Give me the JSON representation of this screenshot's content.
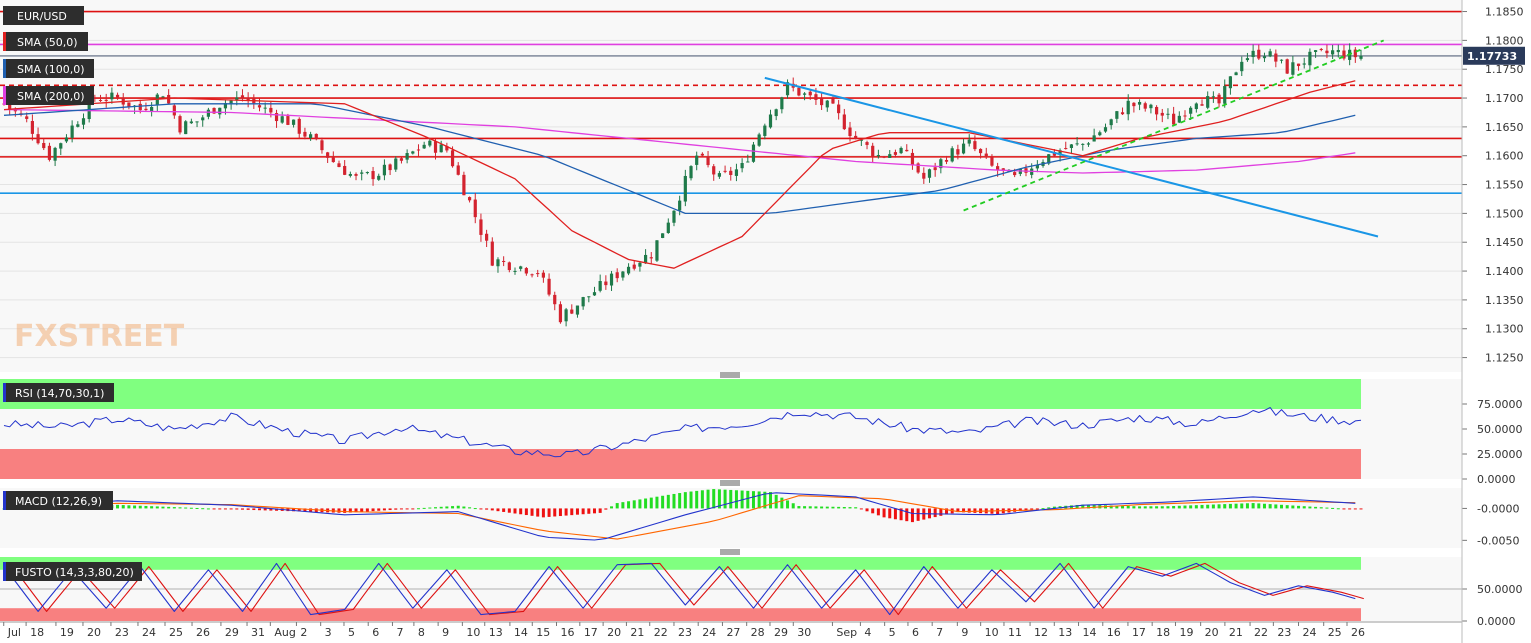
{
  "symbol": "EUR/USD",
  "watermark": "FXSTREET",
  "colors": {
    "background": "#f8f8f8",
    "grid": "#e4e4e4",
    "bull": "#1f7a4a",
    "bear": "#d3232f",
    "sma50": "#e02020",
    "sma100": "#2060b0",
    "sma200": "#e040e0",
    "level": "#dd1111",
    "trendline": "#1a96e6",
    "support": "#22cc22",
    "rsi_line": "#2233cc",
    "macd_line": "#2233cc",
    "macd_signal": "#ff6600",
    "stoch_k": "#2233cc",
    "stoch_d": "#dd1111",
    "overbought_zone": "#80ff80",
    "oversold_zone": "#f88080"
  },
  "chart_data": [
    {
      "type": "candlestick",
      "title": "EUR/USD",
      "price_axis": [
        "1.1850",
        "1.1800",
        "1.1750",
        "1.1700",
        "1.1650",
        "1.1600",
        "1.1550",
        "1.1500",
        "1.1450",
        "1.1400",
        "1.1350",
        "1.1300",
        "1.1250"
      ],
      "ylim": [
        1.1225,
        1.187
      ],
      "last_price": "1.17733",
      "x_tick_labels": [
        "Jul",
        "18",
        "19",
        "20",
        "23",
        "24",
        "25",
        "26",
        "29",
        "31",
        "Aug",
        "2",
        "3",
        "5",
        "6",
        "7",
        "8",
        "9",
        "10",
        "13",
        "14",
        "15",
        "16",
        "17",
        "20",
        "21",
        "22",
        "23",
        "24",
        "27",
        "28",
        "29",
        "30",
        "Sep",
        "4",
        "5",
        "6",
        "7",
        "9",
        "10",
        "11",
        "12",
        "13",
        "14",
        "16",
        "17",
        "18",
        "19",
        "20",
        "21",
        "22",
        "23",
        "24",
        "25",
        "26"
      ],
      "close_path": [
        [
          0,
          1.169
        ],
        [
          4,
          1.166
        ],
        [
          8,
          1.16
        ],
        [
          12,
          1.165
        ],
        [
          16,
          1.17
        ],
        [
          20,
          1.17
        ],
        [
          24,
          1.168
        ],
        [
          28,
          1.171
        ],
        [
          31,
          1.165
        ],
        [
          34,
          1.166
        ],
        [
          38,
          1.169
        ],
        [
          42,
          1.17
        ],
        [
          46,
          1.168
        ],
        [
          50,
          1.166
        ],
        [
          54,
          1.163
        ],
        [
          58,
          1.159
        ],
        [
          62,
          1.156
        ],
        [
          66,
          1.157
        ],
        [
          70,
          1.159
        ],
        [
          74,
          1.162
        ],
        [
          78,
          1.161
        ],
        [
          82,
          1.152
        ],
        [
          86,
          1.142
        ],
        [
          90,
          1.141
        ],
        [
          94,
          1.14
        ],
        [
          98,
          1.132
        ],
        [
          102,
          1.135
        ],
        [
          106,
          1.138
        ],
        [
          110,
          1.141
        ],
        [
          114,
          1.143
        ],
        [
          118,
          1.151
        ],
        [
          122,
          1.16
        ],
        [
          126,
          1.156
        ],
        [
          130,
          1.158
        ],
        [
          134,
          1.166
        ],
        [
          138,
          1.172
        ],
        [
          142,
          1.17
        ],
        [
          146,
          1.168
        ],
        [
          150,
          1.163
        ],
        [
          154,
          1.16
        ],
        [
          158,
          1.161
        ],
        [
          162,
          1.156
        ],
        [
          166,
          1.16
        ],
        [
          170,
          1.162
        ],
        [
          174,
          1.158
        ],
        [
          178,
          1.156
        ],
        [
          182,
          1.159
        ],
        [
          186,
          1.161
        ],
        [
          190,
          1.162
        ],
        [
          194,
          1.165
        ],
        [
          198,
          1.169
        ],
        [
          202,
          1.168
        ],
        [
          206,
          1.166
        ],
        [
          210,
          1.17
        ],
        [
          214,
          1.169
        ],
        [
          218,
          1.177
        ],
        [
          222,
          1.178
        ],
        [
          226,
          1.175
        ],
        [
          230,
          1.177
        ],
        [
          234,
          1.178
        ],
        [
          238,
          1.1773
        ]
      ],
      "sma_50": [
        [
          0,
          1.168
        ],
        [
          30,
          1.17
        ],
        [
          60,
          1.169
        ],
        [
          75,
          1.163
        ],
        [
          90,
          1.156
        ],
        [
          100,
          1.147
        ],
        [
          110,
          1.142
        ],
        [
          118,
          1.1405
        ],
        [
          130,
          1.146
        ],
        [
          145,
          1.161
        ],
        [
          155,
          1.164
        ],
        [
          170,
          1.164
        ],
        [
          180,
          1.162
        ],
        [
          190,
          1.16
        ],
        [
          200,
          1.163
        ],
        [
          215,
          1.166
        ],
        [
          230,
          1.171
        ],
        [
          238,
          1.173
        ]
      ],
      "sma_100": [
        [
          0,
          1.167
        ],
        [
          30,
          1.169
        ],
        [
          55,
          1.169
        ],
        [
          75,
          1.165
        ],
        [
          95,
          1.16
        ],
        [
          110,
          1.154
        ],
        [
          120,
          1.15
        ],
        [
          135,
          1.15
        ],
        [
          150,
          1.152
        ],
        [
          165,
          1.154
        ],
        [
          180,
          1.158
        ],
        [
          195,
          1.161
        ],
        [
          210,
          1.163
        ],
        [
          225,
          1.164
        ],
        [
          238,
          1.167
        ]
      ],
      "sma_200": [
        [
          0,
          1.168
        ],
        [
          40,
          1.1675
        ],
        [
          70,
          1.166
        ],
        [
          90,
          1.165
        ],
        [
          120,
          1.162
        ],
        [
          150,
          1.159
        ],
        [
          175,
          1.1575
        ],
        [
          190,
          1.157
        ],
        [
          210,
          1.1575
        ],
        [
          228,
          1.159
        ],
        [
          238,
          1.1605
        ]
      ],
      "horizontal_levels": [
        1.185,
        1.1793,
        1.17,
        1.163,
        1.1598
      ],
      "dashed_level": 1.1722,
      "blue_levels": [
        1.1535,
        1.1773
      ],
      "trend_line": [
        [
          134,
          1.1735
        ],
        [
          242,
          1.146
        ]
      ],
      "support_line": [
        [
          169,
          1.1505
        ],
        [
          243,
          1.18
        ]
      ],
      "legend": [
        "SMA (50,0)",
        "SMA (100,0)",
        "SMA (200,0)"
      ]
    },
    {
      "type": "line",
      "title": "RSI (14,70,30,1)",
      "ylim": [
        0,
        100
      ],
      "y_tick_labels": [
        "75.0000",
        "50.0000",
        "25.0000",
        "0.0000"
      ],
      "overbought": 70,
      "oversold": 30,
      "values_path": [
        [
          0,
          55
        ],
        [
          10,
          52
        ],
        [
          20,
          60
        ],
        [
          30,
          50
        ],
        [
          40,
          62
        ],
        [
          50,
          48
        ],
        [
          60,
          38
        ],
        [
          70,
          52
        ],
        [
          80,
          40
        ],
        [
          90,
          28
        ],
        [
          100,
          24
        ],
        [
          110,
          36
        ],
        [
          120,
          50
        ],
        [
          130,
          55
        ],
        [
          140,
          68
        ],
        [
          150,
          62
        ],
        [
          160,
          50
        ],
        [
          170,
          46
        ],
        [
          180,
          58
        ],
        [
          190,
          54
        ],
        [
          200,
          62
        ],
        [
          210,
          55
        ],
        [
          220,
          70
        ],
        [
          230,
          62
        ],
        [
          238,
          58
        ]
      ]
    },
    {
      "type": "line",
      "title": "MACD (12,26,9)",
      "ylim": [
        -0.0062,
        0.0032
      ],
      "y_tick_labels": [
        "-0.0000",
        "-0.0050"
      ],
      "macd_path": [
        [
          0,
          0
        ],
        [
          20,
          0.0012
        ],
        [
          40,
          0.0005
        ],
        [
          60,
          -0.001
        ],
        [
          80,
          -0.0005
        ],
        [
          95,
          -0.0045
        ],
        [
          105,
          -0.005
        ],
        [
          120,
          -0.001
        ],
        [
          135,
          0.0025
        ],
        [
          150,
          0.0018
        ],
        [
          160,
          -0.0008
        ],
        [
          175,
          -0.001
        ],
        [
          190,
          0.0005
        ],
        [
          205,
          0.001
        ],
        [
          220,
          0.0018
        ],
        [
          238,
          0.0008
        ]
      ],
      "signal_path": [
        [
          0,
          0
        ],
        [
          20,
          0.0008
        ],
        [
          40,
          0.0006
        ],
        [
          60,
          -0.0005
        ],
        [
          80,
          -0.0008
        ],
        [
          95,
          -0.0035
        ],
        [
          108,
          -0.0048
        ],
        [
          125,
          -0.002
        ],
        [
          140,
          0.002
        ],
        [
          155,
          0.0015
        ],
        [
          168,
          -0.0005
        ],
        [
          185,
          -0.0002
        ],
        [
          200,
          0.0006
        ],
        [
          220,
          0.0012
        ],
        [
          238,
          0.0009
        ]
      ]
    },
    {
      "type": "line",
      "title": "FUSTO (14,3,3,80,20)",
      "ylim": [
        0,
        100
      ],
      "y_tick_labels": [
        "50.0000",
        "0.0000"
      ],
      "overbought": 80,
      "oversold": 20,
      "k_path": [
        [
          0,
          85
        ],
        [
          6,
          15
        ],
        [
          12,
          80
        ],
        [
          18,
          20
        ],
        [
          24,
          85
        ],
        [
          30,
          15
        ],
        [
          36,
          80
        ],
        [
          42,
          15
        ],
        [
          48,
          90
        ],
        [
          54,
          10
        ],
        [
          60,
          18
        ],
        [
          66,
          90
        ],
        [
          72,
          20
        ],
        [
          78,
          80
        ],
        [
          84,
          10
        ],
        [
          90,
          15
        ],
        [
          96,
          85
        ],
        [
          102,
          20
        ],
        [
          108,
          88
        ],
        [
          114,
          90
        ],
        [
          120,
          25
        ],
        [
          126,
          85
        ],
        [
          132,
          20
        ],
        [
          138,
          88
        ],
        [
          144,
          20
        ],
        [
          150,
          80
        ],
        [
          156,
          10
        ],
        [
          162,
          85
        ],
        [
          168,
          20
        ],
        [
          174,
          80
        ],
        [
          180,
          30
        ],
        [
          186,
          90
        ],
        [
          192,
          20
        ],
        [
          198,
          85
        ],
        [
          204,
          70
        ],
        [
          210,
          90
        ],
        [
          216,
          60
        ],
        [
          222,
          40
        ],
        [
          228,
          55
        ],
        [
          234,
          45
        ],
        [
          238,
          35
        ]
      ]
    }
  ]
}
